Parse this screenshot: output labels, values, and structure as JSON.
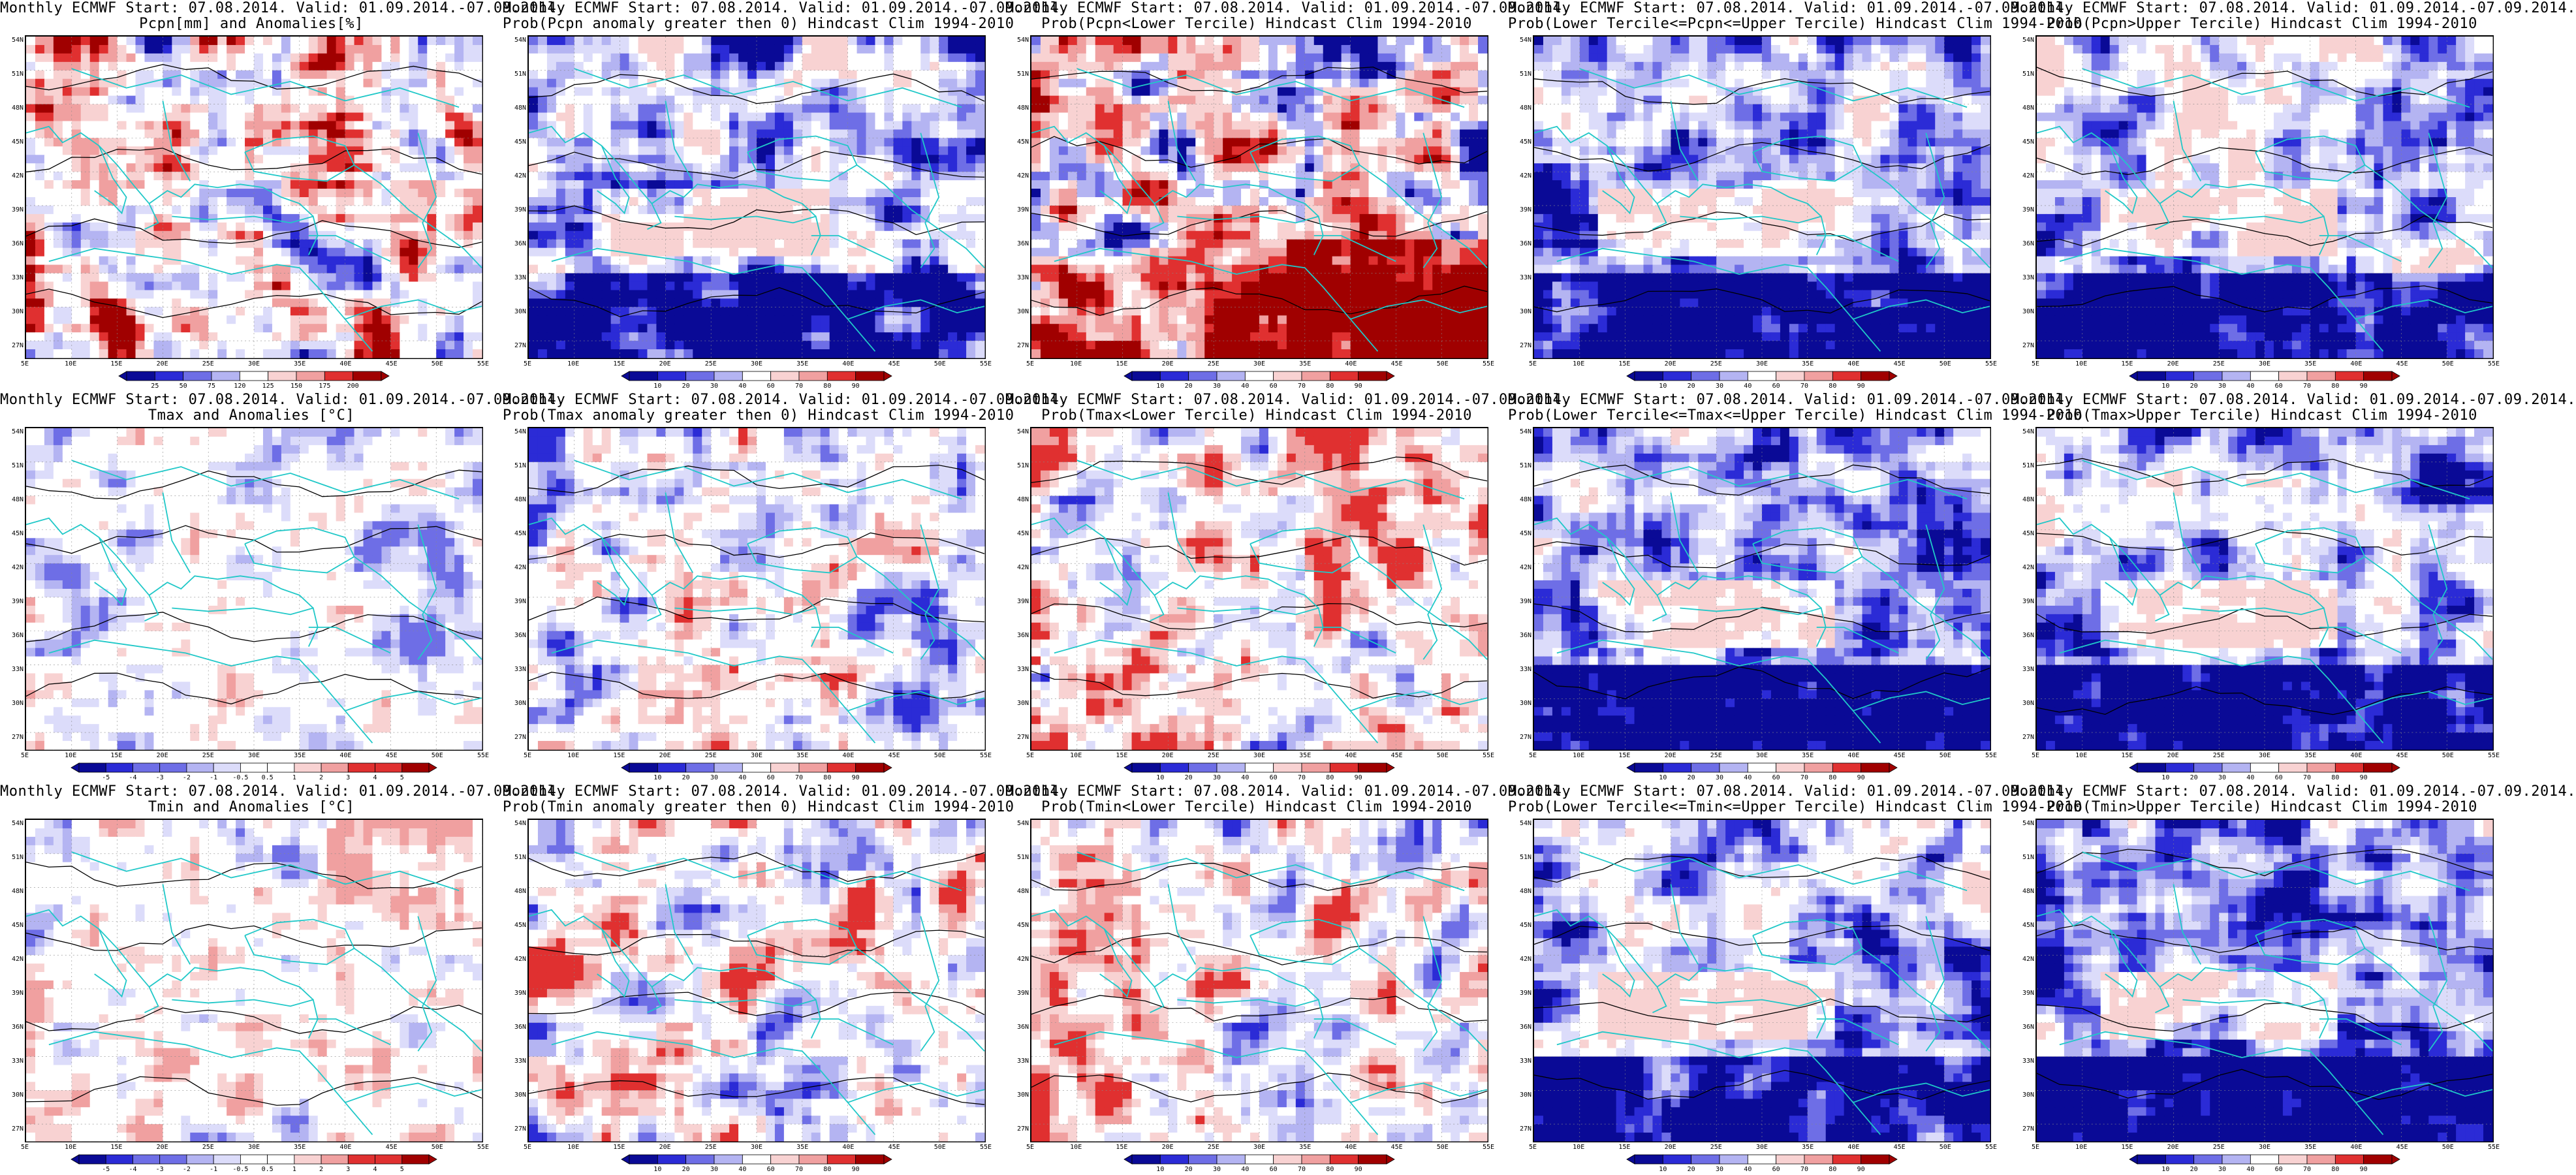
{
  "panels": [
    {
      "title1": "Monthly ECMWF Start: 07.08.2014. Valid: 01.09.2014.-07.09.2014.",
      "title2": "Pcpn[mm] and Anomalies[%]",
      "cbar": [
        "25",
        "50",
        "75",
        "120",
        "125",
        "150",
        "175",
        "200"
      ],
      "scheme": "precip-anom",
      "seed": 1
    },
    {
      "title1": "Monthly ECMWF Start: 07.08.2014. Valid: 01.09.2014.-07.09.2014.",
      "title2": "Prob(Pcpn anomaly greater then 0) Hindcast Clim 1994-2010",
      "cbar": [
        "10",
        "20",
        "30",
        "40",
        "60",
        "70",
        "80",
        "90"
      ],
      "scheme": "prob-blue",
      "seed": 2
    },
    {
      "title1": "Monthly ECMWF Start: 07.08.2014. Valid: 01.09.2014.-07.09.2014.",
      "title2": "Prob(Pcpn<Lower Tercile) Hindcast Clim 1994-2010",
      "cbar": [
        "10",
        "20",
        "30",
        "40",
        "60",
        "70",
        "80",
        "90"
      ],
      "scheme": "prob-red",
      "seed": 3
    },
    {
      "title1": "Monthly ECMWF Start: 07.08.2014. Valid: 01.09.2014.-07.09.2014.",
      "title2": "Prob(Lower Tercile<=Pcpn<=Upper Tercile) Hindcast Clim 1994-2010",
      "cbar": [
        "10",
        "20",
        "30",
        "40",
        "60",
        "70",
        "80",
        "90"
      ],
      "scheme": "prob-blue",
      "seed": 4
    },
    {
      "title1": "Monthly ECMWF Start: 07.08.2014. Valid: 01.09.2014.-07.09.2014.",
      "title2": "Prob(Pcpn>Upper Tercile) Hindcast Clim 1994-2010",
      "cbar": [
        "10",
        "20",
        "30",
        "40",
        "60",
        "70",
        "80",
        "90"
      ],
      "scheme": "prob-blue",
      "seed": 5
    },
    {
      "title1": "Monthly ECMWF Start: 07.08.2014. Valid: 01.09.2014.-07.09.2014.",
      "title2": "Tmax and Anomalies [°C]",
      "cbar": [
        "-5",
        "-4",
        "-3",
        "-2",
        "-1",
        "-0.5",
        "0.5",
        "1",
        "2",
        "3",
        "4",
        "5"
      ],
      "scheme": "anom-light",
      "seed": 6
    },
    {
      "title1": "Monthly ECMWF Start: 07.08.2014. Valid: 01.09.2014.-07.09.2014.",
      "title2": "Prob(Tmax anomaly greater then 0) Hindcast Clim 1994-2010",
      "cbar": [
        "10",
        "20",
        "30",
        "40",
        "60",
        "70",
        "80",
        "90"
      ],
      "scheme": "prob-mixed",
      "seed": 7
    },
    {
      "title1": "Monthly ECMWF Start: 07.08.2014. Valid: 01.09.2014.-07.09.2014.",
      "title2": "Prob(Tmax<Lower Tercile) Hindcast Clim 1994-2010",
      "cbar": [
        "10",
        "20",
        "30",
        "40",
        "60",
        "70",
        "80",
        "90"
      ],
      "scheme": "prob-mixed",
      "seed": 8
    },
    {
      "title1": "Monthly ECMWF Start: 07.08.2014. Valid: 01.09.2014.-07.09.2014.",
      "title2": "Prob(Lower Tercile<=Tmax<=Upper Tercile) Hindcast Clim 1994-2010",
      "cbar": [
        "10",
        "20",
        "30",
        "40",
        "60",
        "70",
        "80",
        "90"
      ],
      "scheme": "prob-blue",
      "seed": 9
    },
    {
      "title1": "Monthly ECMWF Start: 07.08.2014. Valid: 01.09.2014.-07.09.2014.",
      "title2": "Prob(Tmax>Upper Tercile) Hindcast Clim 1994-2010",
      "cbar": [
        "10",
        "20",
        "30",
        "40",
        "60",
        "70",
        "80",
        "90"
      ],
      "scheme": "prob-blue",
      "seed": 10
    },
    {
      "title1": "Monthly ECMWF Start: 07.08.2014. Valid: 01.09.2014.-07.09.2014.",
      "title2": "Tmin and Anomalies [°C]",
      "cbar": [
        "-5",
        "-4",
        "-3",
        "-2",
        "-1",
        "-0.5",
        "0.5",
        "1",
        "2",
        "3",
        "4",
        "5"
      ],
      "scheme": "anom-light",
      "seed": 11
    },
    {
      "title1": "Monthly ECMWF Start: 07.08.2014. Valid: 01.09.2014.-07.09.2014.",
      "title2": "Prob(Tmin anomaly greater then 0) Hindcast Clim 1994-2010",
      "cbar": [
        "10",
        "20",
        "30",
        "40",
        "60",
        "70",
        "80",
        "90"
      ],
      "scheme": "prob-mixed",
      "seed": 12
    },
    {
      "title1": "Monthly ECMWF Start: 07.08.2014. Valid: 01.09.2014.-07.09.2014.",
      "title2": "Prob(Tmin<Lower Tercile) Hindcast Clim 1994-2010",
      "cbar": [
        "10",
        "20",
        "30",
        "40",
        "60",
        "70",
        "80",
        "90"
      ],
      "scheme": "prob-mixed",
      "seed": 13
    },
    {
      "title1": "Monthly ECMWF Start: 07.08.2014. Valid: 01.09.2014.-07.09.2014.",
      "title2": "Prob(Lower Tercile<=Tmin<=Upper Tercile) Hindcast Clim 1994-2010",
      "cbar": [
        "10",
        "20",
        "30",
        "40",
        "60",
        "70",
        "80",
        "90"
      ],
      "scheme": "prob-blue",
      "seed": 14
    },
    {
      "title1": "Monthly ECMWF Start: 07.08.2014. Valid: 01.09.2014.-07.09.2014.",
      "title2": "Prob(Tmin>Upper Tercile) Hindcast Clim 1994-2010",
      "cbar": [
        "10",
        "20",
        "30",
        "40",
        "60",
        "70",
        "80",
        "90"
      ],
      "scheme": "prob-blue",
      "seed": 15
    }
  ],
  "lat_labels": [
    "54N",
    "51N",
    "48N",
    "45N",
    "42N",
    "39N",
    "36N",
    "33N",
    "30N",
    "27N"
  ],
  "lon_labels": [
    "5E",
    "10E",
    "15E",
    "20E",
    "25E",
    "30E",
    "35E",
    "40E",
    "45E",
    "50E",
    "55E"
  ],
  "colors": {
    "deep_blue": "#0a0a96",
    "blue": "#2b2bd6",
    "mid_blue": "#6e6ee6",
    "light_blue": "#b4b4f2",
    "pale_blue": "#dcdcfa",
    "white": "#ffffff",
    "pale_red": "#f8d2d2",
    "light_red": "#f0a0a0",
    "red": "#e03030",
    "dark_red": "#a00000",
    "coast": "#20c8c8",
    "contour": "#000000"
  }
}
